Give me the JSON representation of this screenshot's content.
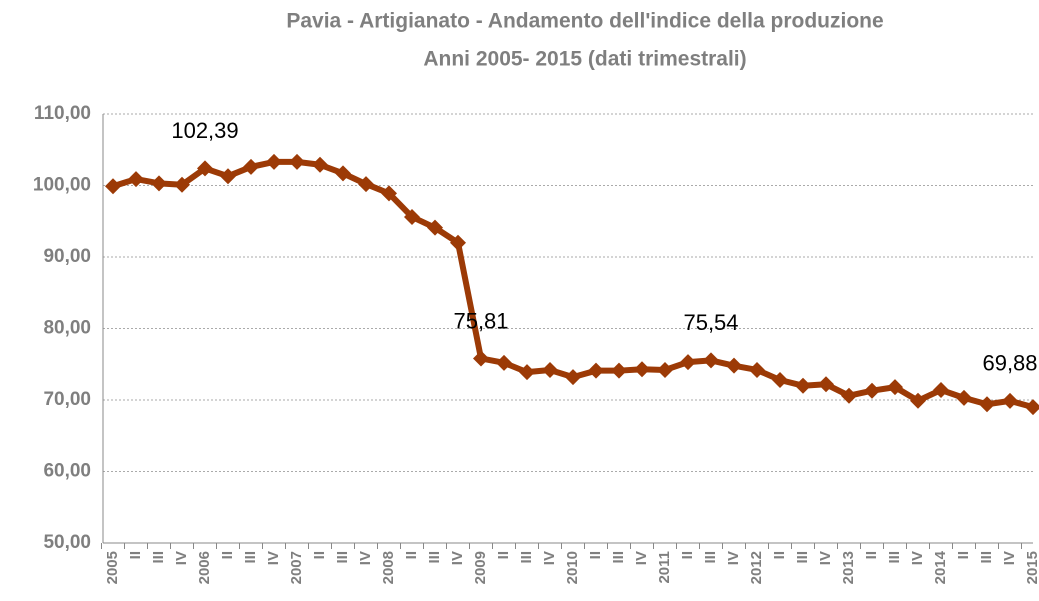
{
  "chart_data": {
    "type": "line",
    "title": "Pavia -  Artigianato -  Andamento dell'indice della produzione",
    "subtitle": "Anni 2005- 2015 (dati trimestrali)",
    "categories": [
      "2005",
      "II",
      "III",
      "IV",
      "2006",
      "II",
      "III",
      "IV",
      "2007",
      "II",
      "III",
      "IV",
      "2008",
      "II",
      "III",
      "IV",
      "2009",
      "II",
      "III",
      "IV",
      "2010",
      "II",
      "III",
      "IV",
      "2011",
      "II",
      "III",
      "IV",
      "2012",
      "II",
      "III",
      "IV",
      "2013",
      "II",
      "III",
      "IV",
      "2014",
      "II",
      "III",
      "IV",
      "2015"
    ],
    "series": [
      {
        "name": "Indice della produzione",
        "color": "#9c3a06",
        "values": [
          99.9,
          100.9,
          100.3,
          100.1,
          102.39,
          101.3,
          102.6,
          103.3,
          103.3,
          102.9,
          101.7,
          100.2,
          98.9,
          95.6,
          94.1,
          92.0,
          75.81,
          75.2,
          73.9,
          74.2,
          73.2,
          74.1,
          74.1,
          74.3,
          74.2,
          75.3,
          75.54,
          74.8,
          74.2,
          72.8,
          72.0,
          72.2,
          70.6,
          71.3,
          71.8,
          69.9,
          71.4,
          70.3,
          69.4,
          69.88,
          69.0
        ],
        "value_labels": [
          null,
          null,
          null,
          null,
          "102,39",
          null,
          null,
          null,
          null,
          null,
          null,
          null,
          null,
          null,
          null,
          null,
          "75,81",
          null,
          null,
          null,
          null,
          null,
          null,
          null,
          null,
          null,
          "75,54",
          null,
          null,
          null,
          null,
          null,
          null,
          null,
          null,
          null,
          null,
          null,
          null,
          "69,88",
          null
        ]
      }
    ],
    "ylim": [
      50,
      110
    ],
    "yticks": [
      {
        "value": 50,
        "label": "50,00"
      },
      {
        "value": 60,
        "label": "60,00"
      },
      {
        "value": 70,
        "label": "70,00"
      },
      {
        "value": 80,
        "label": "80,00"
      },
      {
        "value": 90,
        "label": "90,00"
      },
      {
        "value": 100,
        "label": "100,00"
      },
      {
        "value": 110,
        "label": "110,00"
      }
    ],
    "grid": true
  }
}
